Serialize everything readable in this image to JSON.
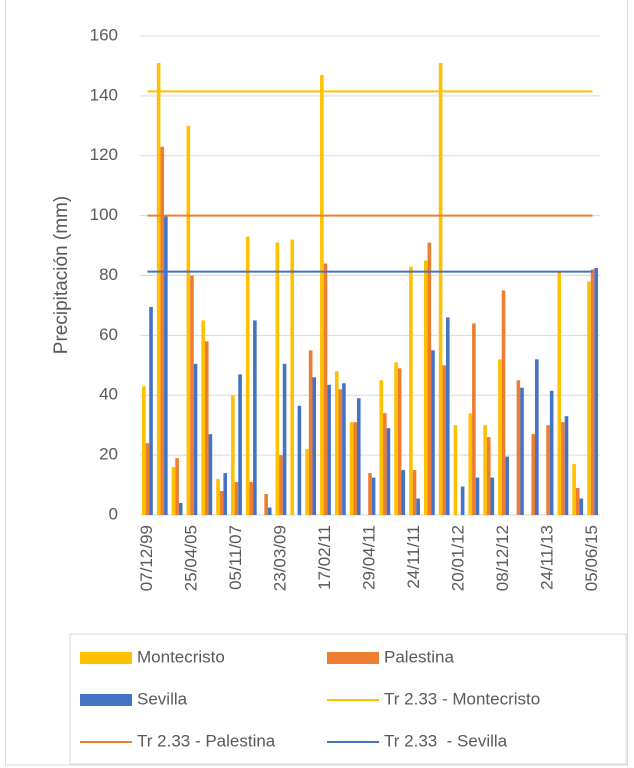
{
  "chart_data": {
    "type": "bar",
    "y_label": "Precipitación (mm)",
    "categories": [
      "07/12/99",
      null,
      null,
      "25/04/05",
      null,
      null,
      "05/11/07",
      null,
      null,
      "23/03/09",
      null,
      null,
      "17/02/11",
      null,
      null,
      "29/04/11",
      null,
      null,
      "24/11/11",
      null,
      null,
      "20/01/12",
      null,
      null,
      "08/12/12",
      null,
      null,
      "24/11/13",
      null,
      null,
      "05/06/15"
    ],
    "series": [
      {
        "name": "Montecristo",
        "kind": "bar",
        "color": "#FFC000",
        "values": [
          43,
          151,
          16,
          130,
          65,
          12,
          40,
          93,
          0,
          91,
          92,
          22,
          147,
          48,
          31,
          0,
          45,
          51,
          83,
          85,
          151,
          30,
          34,
          30,
          52,
          0,
          0,
          0,
          81,
          17,
          78
        ]
      },
      {
        "name": "Palestina",
        "kind": "bar",
        "color": "#ED7D31",
        "values": [
          24,
          123,
          19,
          80,
          58,
          8,
          11,
          11,
          7,
          20,
          0,
          55,
          84,
          42,
          31,
          14,
          34,
          49,
          15,
          91,
          50,
          0,
          64,
          26,
          75,
          45,
          27,
          30,
          31,
          9,
          82
        ]
      },
      {
        "name": "Sevilla",
        "kind": "bar",
        "color": "#4472C4",
        "values": [
          69.5,
          100,
          4,
          50.5,
          27,
          14,
          47,
          65,
          2.5,
          50.5,
          36.5,
          46,
          43.5,
          44,
          39,
          12.5,
          29,
          15,
          5.5,
          55,
          66,
          9.5,
          12.5,
          12.5,
          19.5,
          42.5,
          52,
          41.5,
          33,
          5.5,
          82.5
        ]
      },
      {
        "name": "Tr 2.33 - Montecristo",
        "kind": "line",
        "color": "#FFC000",
        "values": [
          141.5,
          141.5,
          141.5,
          141.5,
          141.5,
          141.5,
          141.5,
          141.5,
          141.5,
          141.5,
          141.5,
          141.5,
          141.5,
          141.5,
          141.5,
          141.5,
          141.5,
          141.5,
          141.5,
          141.5,
          141.5,
          141.5,
          141.5,
          141.5,
          141.5,
          141.5,
          141.5,
          141.5,
          141.5,
          141.5,
          141.5
        ]
      },
      {
        "name": "Tr 2.33 - Palestina",
        "kind": "line",
        "color": "#ED7D31",
        "values": [
          100,
          100,
          100,
          100,
          100,
          100,
          100,
          100,
          100,
          100,
          100,
          100,
          100,
          100,
          100,
          100,
          100,
          100,
          100,
          100,
          100,
          100,
          100,
          100,
          100,
          100,
          100,
          100,
          100,
          100,
          100
        ]
      },
      {
        "name": "Tr 2.33  - Sevilla",
        "kind": "line",
        "color": "#4472C4",
        "values": [
          81.3,
          81.3,
          81.3,
          81.3,
          81.3,
          81.3,
          81.3,
          81.3,
          81.3,
          81.3,
          81.3,
          81.3,
          81.3,
          81.3,
          81.3,
          81.3,
          81.3,
          81.3,
          81.3,
          81.3,
          81.3,
          81.3,
          81.3,
          81.3,
          81.3,
          81.3,
          81.3,
          81.3,
          81.3,
          81.3,
          81.3
        ]
      }
    ],
    "ylim": [
      0,
      160
    ],
    "yticks": [
      0,
      20,
      40,
      60,
      80,
      100,
      120,
      140,
      160
    ],
    "grid": true,
    "legend": "bottom"
  }
}
